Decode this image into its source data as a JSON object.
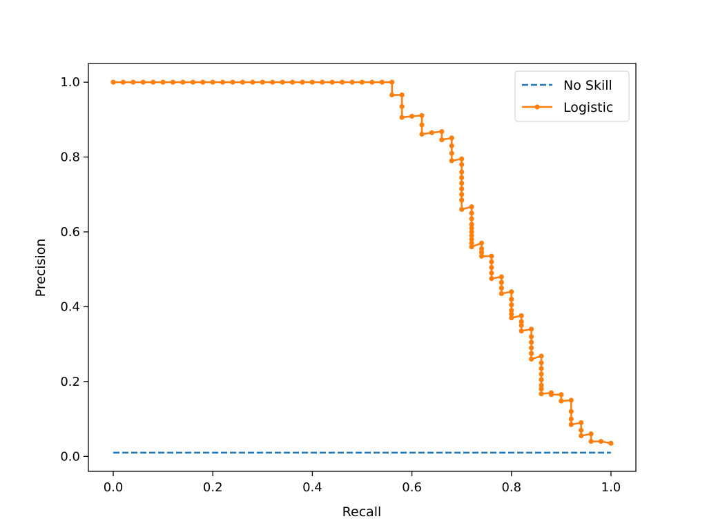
{
  "chart_data": {
    "type": "line",
    "title": "",
    "xlabel": "Recall",
    "ylabel": "Precision",
    "xlim": [
      -0.05,
      1.05
    ],
    "ylim": [
      -0.04,
      1.05
    ],
    "xticks": [
      "0.0",
      "0.2",
      "0.4",
      "0.6",
      "0.8",
      "1.0"
    ],
    "yticks": [
      "0.0",
      "0.2",
      "0.4",
      "0.6",
      "0.8",
      "1.0"
    ],
    "grid": false,
    "legend_position": "top-right",
    "series": [
      {
        "name": "No Skill",
        "style": "dashed",
        "marker": "none",
        "color": "#1f77b4",
        "x": [
          0,
          1
        ],
        "y": [
          0.01,
          0.01
        ]
      },
      {
        "name": "Logistic",
        "style": "solid",
        "marker": "dot",
        "color": "#ff7f0e",
        "x": [
          0.0,
          0.02,
          0.04,
          0.06,
          0.08,
          0.1,
          0.12,
          0.14,
          0.16,
          0.18,
          0.2,
          0.22,
          0.24,
          0.26,
          0.28,
          0.3,
          0.32,
          0.34,
          0.36,
          0.38,
          0.4,
          0.42,
          0.44,
          0.46,
          0.48,
          0.5,
          0.52,
          0.54,
          0.56,
          0.56,
          0.58,
          0.58,
          0.58,
          0.6,
          0.62,
          0.62,
          0.62,
          0.64,
          0.66,
          0.66,
          0.68,
          0.68,
          0.68,
          0.68,
          0.7,
          0.7,
          0.7,
          0.7,
          0.7,
          0.7,
          0.7,
          0.7,
          0.7,
          0.72,
          0.72,
          0.72,
          0.72,
          0.72,
          0.72,
          0.72,
          0.72,
          0.72,
          0.72,
          0.74,
          0.74,
          0.74,
          0.74,
          0.76,
          0.76,
          0.76,
          0.76,
          0.76,
          0.78,
          0.78,
          0.78,
          0.78,
          0.8,
          0.8,
          0.8,
          0.8,
          0.8,
          0.8,
          0.82,
          0.82,
          0.82,
          0.82,
          0.84,
          0.84,
          0.84,
          0.84,
          0.84,
          0.84,
          0.86,
          0.86,
          0.86,
          0.86,
          0.86,
          0.86,
          0.86,
          0.86,
          0.88,
          0.88,
          0.9,
          0.9,
          0.92,
          0.92,
          0.92,
          0.92,
          0.94,
          0.94,
          0.94,
          0.96,
          0.96,
          0.98,
          1.0
        ],
        "y": [
          1.0,
          1.0,
          1.0,
          1.0,
          1.0,
          1.0,
          1.0,
          1.0,
          1.0,
          1.0,
          1.0,
          1.0,
          1.0,
          1.0,
          1.0,
          1.0,
          1.0,
          1.0,
          1.0,
          1.0,
          1.0,
          1.0,
          1.0,
          1.0,
          1.0,
          1.0,
          1.0,
          1.0,
          1.0,
          0.966,
          0.966,
          0.935,
          0.906,
          0.909,
          0.911,
          0.886,
          0.861,
          0.865,
          0.868,
          0.846,
          0.851,
          0.83,
          0.81,
          0.79,
          0.795,
          0.78,
          0.76,
          0.745,
          0.73,
          0.715,
          0.7,
          0.685,
          0.66,
          0.667,
          0.65,
          0.635,
          0.62,
          0.61,
          0.6,
          0.59,
          0.58,
          0.57,
          0.56,
          0.57,
          0.555,
          0.545,
          0.535,
          0.535,
          0.52,
          0.505,
          0.49,
          0.475,
          0.48,
          0.465,
          0.45,
          0.435,
          0.44,
          0.42,
          0.405,
          0.39,
          0.38,
          0.37,
          0.376,
          0.36,
          0.35,
          0.335,
          0.34,
          0.32,
          0.305,
          0.29,
          0.275,
          0.26,
          0.268,
          0.25,
          0.235,
          0.22,
          0.205,
          0.19,
          0.18,
          0.167,
          0.17,
          0.165,
          0.165,
          0.148,
          0.15,
          0.12,
          0.1,
          0.085,
          0.09,
          0.07,
          0.055,
          0.06,
          0.04,
          0.04,
          0.035
        ]
      }
    ]
  }
}
